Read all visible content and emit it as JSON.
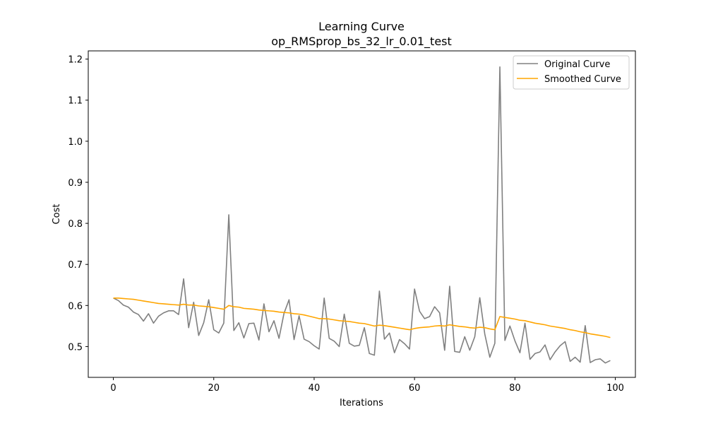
{
  "chart_data": {
    "type": "line",
    "title": "Learning Curve",
    "subtitle": "op_RMSprop_bs_32_lr_0.01_test",
    "xlabel": "Iterations",
    "ylabel": "Cost",
    "xlim": [
      -5,
      104
    ],
    "ylim": [
      0.425,
      1.22
    ],
    "xticks": [
      0,
      20,
      40,
      60,
      80,
      100
    ],
    "yticks": [
      0.5,
      0.6,
      0.7,
      0.8,
      0.9,
      1.0,
      1.1,
      1.2
    ],
    "xtick_labels": [
      "0",
      "20",
      "40",
      "60",
      "80",
      "100"
    ],
    "ytick_labels": [
      "0.5",
      "0.6",
      "0.7",
      "0.8",
      "0.9",
      "1.0",
      "1.1",
      "1.2"
    ],
    "grid": false,
    "legend_position": "upper right",
    "x": [
      0,
      1,
      2,
      3,
      4,
      5,
      6,
      7,
      8,
      9,
      10,
      11,
      12,
      13,
      14,
      15,
      16,
      17,
      18,
      19,
      20,
      21,
      22,
      23,
      24,
      25,
      26,
      27,
      28,
      29,
      30,
      31,
      32,
      33,
      34,
      35,
      36,
      37,
      38,
      39,
      40,
      41,
      42,
      43,
      44,
      45,
      46,
      47,
      48,
      49,
      50,
      51,
      52,
      53,
      54,
      55,
      56,
      57,
      58,
      59,
      60,
      61,
      62,
      63,
      64,
      65,
      66,
      67,
      68,
      69,
      70,
      71,
      72,
      73,
      74,
      75,
      76,
      77,
      78,
      79,
      80,
      81,
      82,
      83,
      84,
      85,
      86,
      87,
      88,
      89,
      90,
      91,
      92,
      93,
      94,
      95,
      96,
      97,
      98,
      99
    ],
    "series": [
      {
        "name": "Original Curve",
        "color": "#808080",
        "values": [
          0.618,
          0.612,
          0.601,
          0.596,
          0.584,
          0.578,
          0.562,
          0.58,
          0.557,
          0.574,
          0.582,
          0.587,
          0.587,
          0.578,
          0.665,
          0.546,
          0.608,
          0.527,
          0.558,
          0.614,
          0.541,
          0.533,
          0.557,
          0.821,
          0.539,
          0.558,
          0.521,
          0.556,
          0.557,
          0.516,
          0.604,
          0.536,
          0.563,
          0.52,
          0.581,
          0.614,
          0.517,
          0.575,
          0.518,
          0.512,
          0.502,
          0.494,
          0.618,
          0.52,
          0.513,
          0.5,
          0.579,
          0.508,
          0.501,
          0.503,
          0.546,
          0.483,
          0.479,
          0.635,
          0.518,
          0.533,
          0.485,
          0.517,
          0.507,
          0.494,
          0.64,
          0.586,
          0.568,
          0.573,
          0.597,
          0.582,
          0.491,
          0.647,
          0.488,
          0.486,
          0.524,
          0.491,
          0.524,
          0.619,
          0.53,
          0.474,
          0.508,
          1.181,
          0.515,
          0.55,
          0.514,
          0.485,
          0.557,
          0.469,
          0.483,
          0.487,
          0.504,
          0.468,
          0.487,
          0.502,
          0.512,
          0.464,
          0.474,
          0.462,
          0.551,
          0.461,
          0.468,
          0.47,
          0.46,
          0.466
        ]
      },
      {
        "name": "Smoothed Curve",
        "color": "#ffa500",
        "values": [
          0.618,
          0.618,
          0.617,
          0.616,
          0.615,
          0.613,
          0.611,
          0.609,
          0.607,
          0.605,
          0.604,
          0.603,
          0.602,
          0.601,
          0.603,
          0.601,
          0.601,
          0.599,
          0.598,
          0.597,
          0.595,
          0.593,
          0.591,
          0.6,
          0.597,
          0.596,
          0.593,
          0.592,
          0.591,
          0.589,
          0.588,
          0.587,
          0.586,
          0.584,
          0.583,
          0.582,
          0.58,
          0.579,
          0.577,
          0.574,
          0.571,
          0.568,
          0.568,
          0.567,
          0.565,
          0.563,
          0.562,
          0.561,
          0.559,
          0.557,
          0.556,
          0.553,
          0.55,
          0.552,
          0.551,
          0.549,
          0.547,
          0.545,
          0.543,
          0.541,
          0.544,
          0.546,
          0.547,
          0.548,
          0.55,
          0.551,
          0.55,
          0.553,
          0.551,
          0.549,
          0.548,
          0.546,
          0.545,
          0.547,
          0.546,
          0.543,
          0.541,
          0.573,
          0.571,
          0.569,
          0.567,
          0.564,
          0.563,
          0.56,
          0.557,
          0.555,
          0.553,
          0.55,
          0.548,
          0.546,
          0.544,
          0.541,
          0.539,
          0.536,
          0.534,
          0.531,
          0.529,
          0.527,
          0.525,
          0.522
        ]
      }
    ]
  }
}
